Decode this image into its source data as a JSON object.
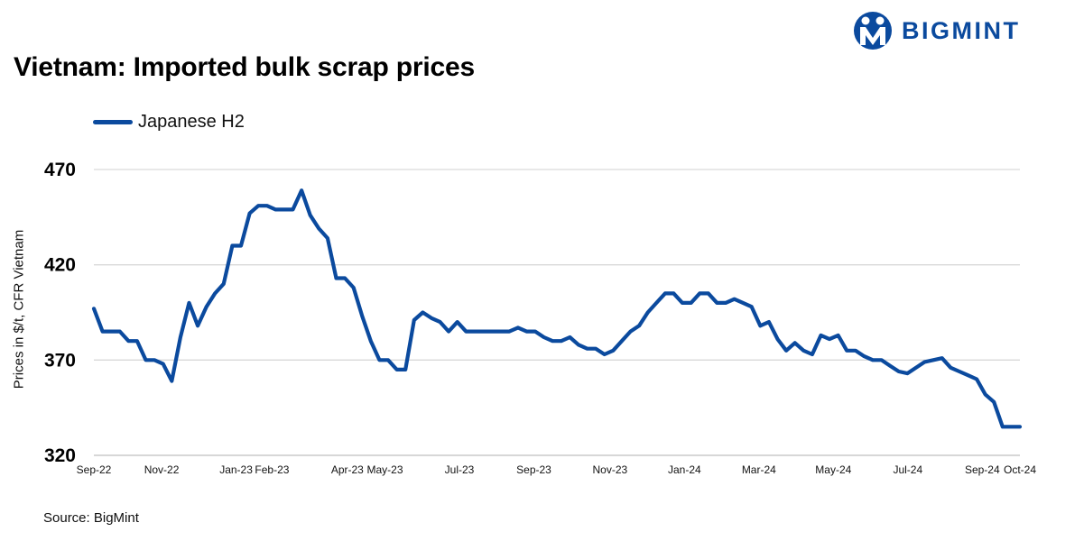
{
  "header": {
    "title": "Vietnam: Imported bulk scrap prices",
    "logo_text": "BIGMINT"
  },
  "footer": {
    "source": "Source: BigMint"
  },
  "colors": {
    "series": "#0b4a9e",
    "grid": "#d9d9d9",
    "logo": "#0b4a9e"
  },
  "chart_data": {
    "type": "line",
    "title": "Vietnam: Imported bulk scrap prices",
    "xlabel": "",
    "ylabel": "Prices in $/t, CFR Vietnam",
    "ylim": [
      320,
      470
    ],
    "yticks": [
      320,
      370,
      420,
      470
    ],
    "grid": "horizontal",
    "legend_position": "top-left",
    "x_tick_labels": [
      "Sep-22",
      "Nov-22",
      "Jan-23",
      "Feb-23",
      "Apr-23",
      "May-23",
      "Jul-23",
      "Sep-23",
      "Nov-23",
      "Jan-24",
      "Mar-24",
      "May-24",
      "Jul-24",
      "Sep-24",
      "Oct-24"
    ],
    "x_tick_positions": [
      0,
      8.1,
      17,
      21.3,
      30.3,
      34.8,
      43.7,
      52.6,
      61.7,
      70.6,
      79.5,
      88.4,
      97.3,
      106.2,
      110.7
    ],
    "x_max": 110.7,
    "series": [
      {
        "name": "Japanese H2",
        "values": [
          397,
          385,
          385,
          385,
          380,
          380,
          370,
          370,
          368,
          359,
          382,
          400,
          388,
          398,
          405,
          410,
          430,
          430,
          447,
          451,
          451,
          449,
          449,
          449,
          459,
          446,
          439,
          434,
          413,
          413,
          408,
          393,
          380,
          370,
          370,
          365,
          365,
          391,
          395,
          392,
          390,
          385,
          390,
          385,
          385,
          385,
          385,
          385,
          385,
          387,
          385,
          385,
          382,
          380,
          380,
          382,
          378,
          376,
          376,
          373,
          375,
          380,
          385,
          388,
          395,
          400,
          405,
          405,
          400,
          400,
          405,
          405,
          400,
          400,
          402,
          400,
          398,
          388,
          390,
          381,
          375,
          379,
          375,
          373,
          383,
          381,
          383,
          375,
          375,
          372,
          370,
          370,
          367,
          364,
          363,
          366,
          369,
          370,
          371,
          366,
          364,
          362,
          360,
          352,
          348,
          335,
          335,
          335
        ]
      }
    ]
  }
}
